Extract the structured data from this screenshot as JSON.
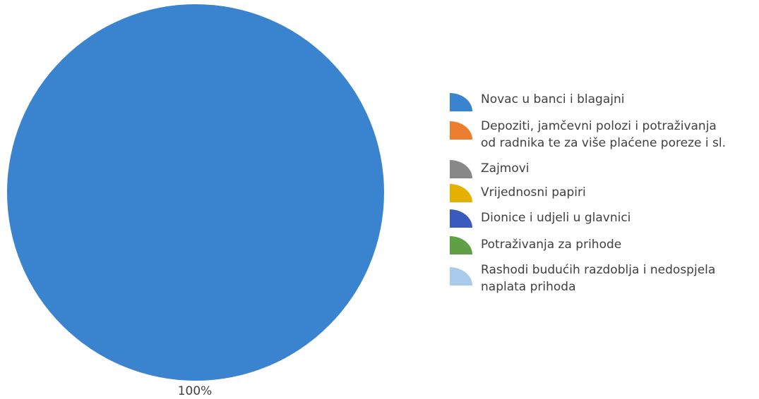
{
  "chart_data": {
    "type": "pie",
    "title": "",
    "categories": [
      "Novac u banci i blagajni",
      "Depoziti, jamčevni polozi i potraživanja\nod radnika te za više plaćene poreze i sl.",
      "Zajmovi",
      "Vrijednosni papiri",
      "Dionice i udjeli u glavnici",
      "Potraživanja za prihode",
      "Rashodi budućih razdoblja i nedospjela\nnaplata prihoda"
    ],
    "values": [
      100,
      0,
      0,
      0,
      0,
      0,
      0
    ],
    "data_labels": [
      "100%"
    ],
    "colors": [
      "#3a84cf",
      "#ed7d31",
      "#888888",
      "#e6b000",
      "#3a5bbd",
      "#5fa044",
      "#a9cbec"
    ],
    "legend_position": "right"
  }
}
